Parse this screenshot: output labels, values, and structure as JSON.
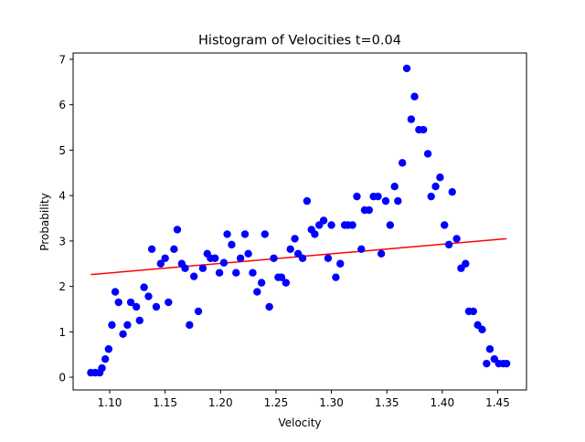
{
  "chart_data": {
    "type": "scatter",
    "title": "Histogram of Velocities t=0.04",
    "xlabel": "Velocity",
    "ylabel": "Probability",
    "xlim": [
      1.067,
      1.476
    ],
    "ylim": [
      -0.28,
      7.14
    ],
    "xticks": [
      1.1,
      1.15,
      1.2,
      1.25,
      1.3,
      1.35,
      1.4,
      1.45
    ],
    "xtick_labels": [
      "1.10",
      "1.15",
      "1.20",
      "1.25",
      "1.30",
      "1.35",
      "1.40",
      "1.45"
    ],
    "yticks": [
      0,
      1,
      2,
      3,
      4,
      5,
      6,
      7
    ],
    "ytick_labels": [
      "0",
      "1",
      "2",
      "3",
      "4",
      "5",
      "6",
      "7"
    ],
    "grid": false,
    "series": [
      {
        "kind": "scatter",
        "color": "#0000ff",
        "x": [
          1.083,
          1.087,
          1.091,
          1.093,
          1.096,
          1.099,
          1.102,
          1.105,
          1.108,
          1.112,
          1.116,
          1.119,
          1.124,
          1.127,
          1.131,
          1.135,
          1.138,
          1.142,
          1.146,
          1.15,
          1.153,
          1.158,
          1.161,
          1.165,
          1.168,
          1.172,
          1.176,
          1.18,
          1.184,
          1.188,
          1.191,
          1.195,
          1.199,
          1.203,
          1.206,
          1.21,
          1.214,
          1.218,
          1.222,
          1.225,
          1.229,
          1.233,
          1.237,
          1.24,
          1.244,
          1.248,
          1.252,
          1.255,
          1.259,
          1.263,
          1.267,
          1.27,
          1.274,
          1.278,
          1.282,
          1.285,
          1.289,
          1.293,
          1.297,
          1.3,
          1.304,
          1.308,
          1.312,
          1.315,
          1.319,
          1.323,
          1.327,
          1.33,
          1.334,
          1.338,
          1.342,
          1.345,
          1.349,
          1.353,
          1.357,
          1.36,
          1.364,
          1.368,
          1.372,
          1.375,
          1.379,
          1.383,
          1.387,
          1.39,
          1.394,
          1.398,
          1.402,
          1.406,
          1.409,
          1.413,
          1.417,
          1.421,
          1.424,
          1.428,
          1.432,
          1.436,
          1.44,
          1.443,
          1.447,
          1.451,
          1.455,
          1.458
        ],
        "y": [
          0.1,
          0.1,
          0.1,
          0.2,
          0.4,
          0.62,
          1.15,
          1.88,
          1.65,
          0.95,
          1.15,
          1.65,
          1.55,
          1.25,
          1.98,
          1.78,
          2.82,
          1.55,
          2.5,
          2.62,
          1.65,
          2.82,
          3.25,
          2.5,
          2.4,
          1.15,
          2.22,
          1.45,
          2.4,
          2.72,
          2.62,
          2.62,
          2.3,
          2.52,
          3.15,
          2.92,
          2.3,
          2.62,
          3.15,
          2.72,
          2.3,
          1.88,
          2.08,
          3.15,
          1.55,
          2.62,
          2.2,
          2.2,
          2.08,
          2.82,
          3.05,
          2.72,
          2.62,
          3.88,
          3.25,
          3.15,
          3.35,
          3.45,
          2.62,
          3.35,
          2.2,
          2.5,
          3.35,
          3.35,
          3.35,
          3.98,
          2.82,
          3.68,
          3.68,
          3.98,
          3.98,
          2.72,
          3.88,
          3.35,
          4.2,
          3.88,
          4.72,
          6.8,
          5.68,
          6.18,
          5.45,
          5.45,
          4.92,
          3.98,
          4.2,
          4.4,
          3.35,
          2.92,
          4.08,
          3.05,
          2.4,
          2.5,
          1.45,
          1.45,
          1.15,
          1.05,
          0.3,
          0.62,
          0.4,
          0.3,
          0.3,
          0.3
        ]
      },
      {
        "kind": "line",
        "color": "#ff0000",
        "x": [
          1.083,
          1.458
        ],
        "y": [
          2.26,
          3.05
        ]
      }
    ]
  }
}
